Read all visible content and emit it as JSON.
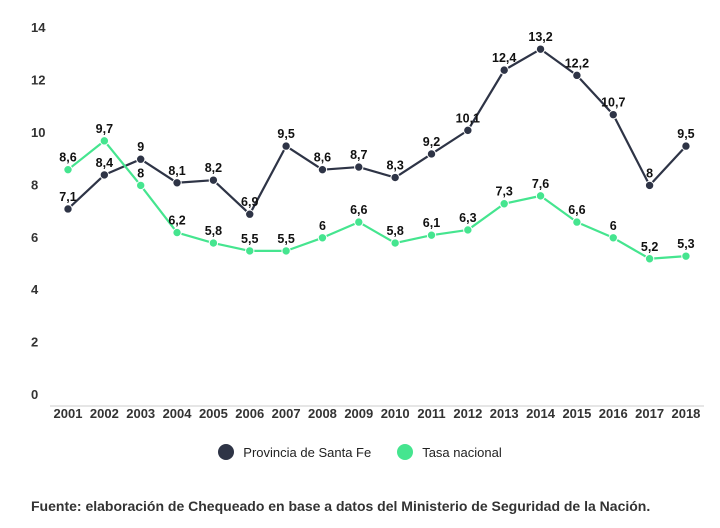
{
  "chart_data": {
    "type": "line",
    "categories": [
      "2001",
      "2002",
      "2003",
      "2004",
      "2005",
      "2006",
      "2007",
      "2008",
      "2009",
      "2010",
      "2011",
      "2012",
      "2013",
      "2014",
      "2015",
      "2016",
      "2017",
      "2018"
    ],
    "series": [
      {
        "name": "Provincia de Santa Fe",
        "color": "#2e3446",
        "values": [
          7.1,
          8.4,
          9,
          8.1,
          8.2,
          6.9,
          9.5,
          8.6,
          8.7,
          8.3,
          9.2,
          10.1,
          12.4,
          13.2,
          12.2,
          10.7,
          8,
          9.5
        ],
        "labels": [
          "7,1",
          "8,4",
          "9",
          "8,1",
          "8,2",
          "6,9",
          "9,5",
          "8,6",
          "8,7",
          "8,3",
          "9,2",
          "10,1",
          "12,4",
          "13,2",
          "12,2",
          "10,7",
          "8",
          "9,5"
        ]
      },
      {
        "name": "Tasa nacional",
        "color": "#45e58f",
        "values": [
          8.6,
          9.7,
          8,
          6.2,
          5.8,
          5.5,
          5.5,
          6,
          6.6,
          5.8,
          6.1,
          6.3,
          7.3,
          7.6,
          6.6,
          6,
          5.2,
          5.3
        ],
        "labels": [
          "8,6",
          "9,7",
          "8",
          "6,2",
          "5,8",
          "5,5",
          "5,5",
          "6",
          "6,6",
          "5,8",
          "6,1",
          "6,3",
          "7,3",
          "7,6",
          "6,6",
          "6",
          "5,2",
          "5,3"
        ]
      }
    ],
    "yticks": [
      "0",
      "2",
      "4",
      "6",
      "8",
      "10",
      "12",
      "14"
    ],
    "ylim": [
      0,
      14
    ],
    "grid": false,
    "legend_position": "bottom",
    "source": "Fuente: elaboración de Chequeado en base a datos del Ministerio de Seguridad de la Nación."
  }
}
